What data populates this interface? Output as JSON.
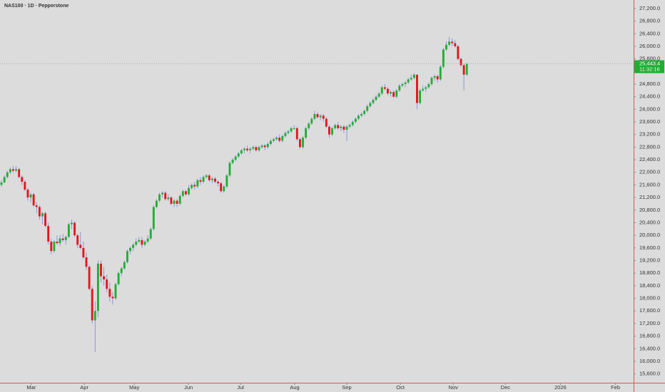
{
  "chart_data": {
    "type": "candlestick",
    "title": "NAS100 · 1D · Pepperstone",
    "up_color": "#1fae33",
    "down_color": "#e5141b",
    "wick_color": "#7a86d8",
    "axis_color": "#e05555",
    "ylim": [
      15320,
      27470
    ],
    "xlim": [
      -0.5,
      216
    ],
    "yticks": [
      {
        "value": 15600,
        "label": "15,600.0"
      },
      {
        "value": 16000,
        "label": "16,000.0"
      },
      {
        "value": 16400,
        "label": "16,400.0"
      },
      {
        "value": 16800,
        "label": "16,800.0"
      },
      {
        "value": 17200,
        "label": "17,200.0"
      },
      {
        "value": 17600,
        "label": "17,600.0"
      },
      {
        "value": 18000,
        "label": "18,000.0"
      },
      {
        "value": 18400,
        "label": "18,400.0"
      },
      {
        "value": 18800,
        "label": "18,800.0"
      },
      {
        "value": 19200,
        "label": "19,200.0"
      },
      {
        "value": 19600,
        "label": "19,600.0"
      },
      {
        "value": 20000,
        "label": "20,000.0"
      },
      {
        "value": 20400,
        "label": "20,400.0"
      },
      {
        "value": 20800,
        "label": "20,800.0"
      },
      {
        "value": 21200,
        "label": "21,200.0"
      },
      {
        "value": 21600,
        "label": "21,600.0"
      },
      {
        "value": 22000,
        "label": "22,000.0"
      },
      {
        "value": 22400,
        "label": "22,400.0"
      },
      {
        "value": 22800,
        "label": "22,800.0"
      },
      {
        "value": 23200,
        "label": "23,200.0"
      },
      {
        "value": 23600,
        "label": "23,600.0"
      },
      {
        "value": 24000,
        "label": "24,000.0"
      },
      {
        "value": 24400,
        "label": "24,400.0"
      },
      {
        "value": 24800,
        "label": "24,800.0"
      },
      {
        "value": 25200,
        "label": "25,200.0"
      },
      {
        "value": 25600,
        "label": "25,600.0"
      },
      {
        "value": 26000,
        "label": "26,000.0"
      },
      {
        "value": 26400,
        "label": "26,400.0"
      },
      {
        "value": 26800,
        "label": "26,800.0"
      },
      {
        "value": 27200,
        "label": "27,200.0"
      }
    ],
    "xticks": [
      {
        "value": 10.2,
        "label": "Mar"
      },
      {
        "value": 28.3,
        "label": "Apr"
      },
      {
        "value": 45.4,
        "label": "May"
      },
      {
        "value": 63.9,
        "label": "Jun"
      },
      {
        "value": 81.7,
        "label": "Jul"
      },
      {
        "value": 100.2,
        "label": "Aug"
      },
      {
        "value": 118,
        "label": "Sep"
      },
      {
        "value": 136.3,
        "label": "Oct"
      },
      {
        "value": 154.4,
        "label": "Nov"
      },
      {
        "value": 172.2,
        "label": "Dec"
      },
      {
        "value": 191,
        "label": "2026"
      },
      {
        "value": 209.8,
        "label": "Feb"
      }
    ],
    "last_price": {
      "value": 25443.4,
      "label": "25,443.4"
    },
    "countdown": "11:32:16",
    "ohlc": [
      [
        21600,
        21750,
        21550,
        21680
      ],
      [
        21680,
        21900,
        21650,
        21850
      ],
      [
        21850,
        22050,
        21800,
        22000
      ],
      [
        22000,
        22150,
        21950,
        22100
      ],
      [
        22100,
        22200,
        21980,
        22050
      ],
      [
        22050,
        22200,
        22000,
        22100
      ],
      [
        22100,
        22150,
        21800,
        21850
      ],
      [
        21850,
        21900,
        21600,
        21700
      ],
      [
        21700,
        21750,
        21400,
        21450
      ],
      [
        21450,
        21500,
        21100,
        21200
      ],
      [
        21200,
        21350,
        21050,
        21300
      ],
      [
        21300,
        21350,
        20900,
        20950
      ],
      [
        20950,
        21050,
        20700,
        20900
      ],
      [
        20900,
        20950,
        20500,
        20600
      ],
      [
        20600,
        20750,
        20350,
        20700
      ],
      [
        20700,
        20750,
        20250,
        20300
      ],
      [
        20300,
        20400,
        19700,
        19800
      ],
      [
        19800,
        19900,
        19400,
        19500
      ],
      [
        19500,
        19850,
        19450,
        19800
      ],
      [
        19800,
        20000,
        19700,
        19750
      ],
      [
        19750,
        20000,
        19650,
        19900
      ],
      [
        19900,
        20050,
        19800,
        19850
      ],
      [
        19850,
        20000,
        19700,
        19950
      ],
      [
        19950,
        20400,
        19900,
        20350
      ],
      [
        20350,
        20500,
        20200,
        20400
      ],
      [
        20400,
        20450,
        19950,
        20000
      ],
      [
        20000,
        20050,
        19600,
        19700
      ],
      [
        19700,
        20100,
        19550,
        19600
      ],
      [
        19600,
        19800,
        19250,
        19300
      ],
      [
        19300,
        19450,
        18900,
        19000
      ],
      [
        19000,
        19050,
        18250,
        18300
      ],
      [
        18300,
        18400,
        17200,
        17300
      ],
      [
        17300,
        17900,
        16300,
        17600
      ],
      [
        17600,
        19200,
        17400,
        19100
      ],
      [
        19100,
        19200,
        18500,
        18700
      ],
      [
        18700,
        19000,
        18400,
        18600
      ],
      [
        18600,
        18750,
        18200,
        18300
      ],
      [
        18300,
        18500,
        17900,
        18050
      ],
      [
        18050,
        18200,
        17800,
        18000
      ],
      [
        18000,
        18500,
        17950,
        18450
      ],
      [
        18450,
        18850,
        18400,
        18800
      ],
      [
        18800,
        19000,
        18700,
        18950
      ],
      [
        18950,
        19200,
        18900,
        19150
      ],
      [
        19150,
        19550,
        19100,
        19500
      ],
      [
        19500,
        19650,
        19400,
        19600
      ],
      [
        19600,
        19750,
        19500,
        19700
      ],
      [
        19700,
        19900,
        19650,
        19800
      ],
      [
        19800,
        19950,
        19750,
        19850
      ],
      [
        19850,
        19950,
        19600,
        19700
      ],
      [
        19700,
        19850,
        19650,
        19800
      ],
      [
        19800,
        20000,
        19750,
        19900
      ],
      [
        19900,
        20250,
        19850,
        20200
      ],
      [
        20200,
        20950,
        20150,
        20900
      ],
      [
        20900,
        21150,
        20850,
        21100
      ],
      [
        21100,
        21350,
        21050,
        21300
      ],
      [
        21300,
        21400,
        21200,
        21350
      ],
      [
        21350,
        21400,
        21100,
        21150
      ],
      [
        21150,
        21300,
        21100,
        21200
      ],
      [
        21200,
        21250,
        20950,
        21000
      ],
      [
        21000,
        21150,
        20900,
        21100
      ],
      [
        21100,
        21150,
        20900,
        21000
      ],
      [
        21000,
        21300,
        20950,
        21250
      ],
      [
        21250,
        21450,
        21200,
        21400
      ],
      [
        21400,
        21450,
        21250,
        21300
      ],
      [
        21300,
        21600,
        21250,
        21500
      ],
      [
        21500,
        21650,
        21450,
        21600
      ],
      [
        21600,
        21700,
        21450,
        21550
      ],
      [
        21550,
        21800,
        21500,
        21750
      ],
      [
        21750,
        21850,
        21600,
        21700
      ],
      [
        21700,
        21900,
        21650,
        21850
      ],
      [
        21850,
        21950,
        21800,
        21900
      ],
      [
        21900,
        21950,
        21700,
        21750
      ],
      [
        21750,
        21850,
        21650,
        21800
      ],
      [
        21800,
        21850,
        21650,
        21700
      ],
      [
        21700,
        21750,
        21550,
        21650
      ],
      [
        21650,
        21700,
        21350,
        21400
      ],
      [
        21400,
        21600,
        21350,
        21550
      ],
      [
        21550,
        21950,
        21500,
        21900
      ],
      [
        21900,
        22350,
        21850,
        22300
      ],
      [
        22300,
        22450,
        22250,
        22400
      ],
      [
        22400,
        22550,
        22350,
        22500
      ],
      [
        22500,
        22650,
        22450,
        22600
      ],
      [
        22600,
        22750,
        22550,
        22700
      ],
      [
        22700,
        22800,
        22600,
        22750
      ],
      [
        22750,
        22850,
        22650,
        22700
      ],
      [
        22700,
        22800,
        22600,
        22750
      ],
      [
        22750,
        22850,
        22700,
        22800
      ],
      [
        22800,
        22850,
        22650,
        22700
      ],
      [
        22700,
        22850,
        22650,
        22800
      ],
      [
        22800,
        22900,
        22750,
        22850
      ],
      [
        22850,
        22900,
        22700,
        22800
      ],
      [
        22800,
        22950,
        22750,
        22900
      ],
      [
        22900,
        23050,
        22850,
        23000
      ],
      [
        23000,
        23100,
        22950,
        23050
      ],
      [
        23050,
        23150,
        23000,
        23100
      ],
      [
        23100,
        23200,
        22950,
        23000
      ],
      [
        23000,
        23200,
        22950,
        23150
      ],
      [
        23150,
        23300,
        23100,
        23250
      ],
      [
        23250,
        23350,
        23200,
        23300
      ],
      [
        23300,
        23450,
        23250,
        23400
      ],
      [
        23400,
        23500,
        23350,
        23400
      ],
      [
        23400,
        23450,
        23000,
        23050
      ],
      [
        23050,
        23100,
        22750,
        22800
      ],
      [
        22800,
        23150,
        22750,
        23100
      ],
      [
        23100,
        23450,
        23050,
        23400
      ],
      [
        23400,
        23600,
        23350,
        23550
      ],
      [
        23550,
        23750,
        23500,
        23700
      ],
      [
        23700,
        23950,
        23650,
        23850
      ],
      [
        23850,
        23900,
        23700,
        23750
      ],
      [
        23750,
        23850,
        23650,
        23800
      ],
      [
        23800,
        23850,
        23600,
        23700
      ],
      [
        23700,
        23750,
        23400,
        23450
      ],
      [
        23450,
        23500,
        23100,
        23200
      ],
      [
        23200,
        23450,
        23150,
        23400
      ],
      [
        23400,
        23550,
        23350,
        23500
      ],
      [
        23500,
        23600,
        23350,
        23400
      ],
      [
        23400,
        23500,
        23300,
        23450
      ],
      [
        23450,
        23500,
        23250,
        23350
      ],
      [
        23350,
        23500,
        23000,
        23450
      ],
      [
        23450,
        23550,
        23400,
        23500
      ],
      [
        23500,
        23650,
        23450,
        23600
      ],
      [
        23600,
        23750,
        23550,
        23700
      ],
      [
        23700,
        23850,
        23650,
        23800
      ],
      [
        23800,
        23900,
        23750,
        23850
      ],
      [
        23850,
        24000,
        23800,
        23950
      ],
      [
        23950,
        24150,
        23900,
        24100
      ],
      [
        24100,
        24250,
        24050,
        24200
      ],
      [
        24200,
        24350,
        24150,
        24300
      ],
      [
        24300,
        24450,
        24250,
        24400
      ],
      [
        24400,
        24550,
        24350,
        24500
      ],
      [
        24500,
        24750,
        24450,
        24700
      ],
      [
        24700,
        24800,
        24600,
        24650
      ],
      [
        24650,
        24700,
        24450,
        24500
      ],
      [
        24500,
        24600,
        24400,
        24550
      ],
      [
        24550,
        24600,
        24350,
        24400
      ],
      [
        24400,
        24650,
        24350,
        24600
      ],
      [
        24600,
        24800,
        24550,
        24750
      ],
      [
        24750,
        24850,
        24700,
        24800
      ],
      [
        24800,
        24900,
        24700,
        24850
      ],
      [
        24850,
        25000,
        24800,
        24950
      ],
      [
        24950,
        25100,
        24900,
        25000
      ],
      [
        25000,
        25150,
        24950,
        25100
      ],
      [
        25100,
        25100,
        24000,
        24200
      ],
      [
        24200,
        24650,
        24150,
        24600
      ],
      [
        24600,
        24750,
        24550,
        24650
      ],
      [
        24650,
        24750,
        24550,
        24700
      ],
      [
        24700,
        24850,
        24650,
        24800
      ],
      [
        24800,
        25050,
        24750,
        25000
      ],
      [
        25000,
        25100,
        24900,
        25050
      ],
      [
        25050,
        25100,
        24850,
        24950
      ],
      [
        24950,
        25400,
        24900,
        25350
      ],
      [
        25350,
        25950,
        25300,
        25900
      ],
      [
        25900,
        26150,
        25850,
        26050
      ],
      [
        26050,
        26300,
        26000,
        26150
      ],
      [
        26150,
        26250,
        26000,
        26100
      ],
      [
        26100,
        26200,
        25950,
        26000
      ],
      [
        26000,
        26050,
        25550,
        25600
      ],
      [
        25600,
        25650,
        25350,
        25400
      ],
      [
        25400,
        25450,
        24600,
        25100
      ],
      [
        25100,
        25480,
        25050,
        25443.4
      ]
    ]
  }
}
